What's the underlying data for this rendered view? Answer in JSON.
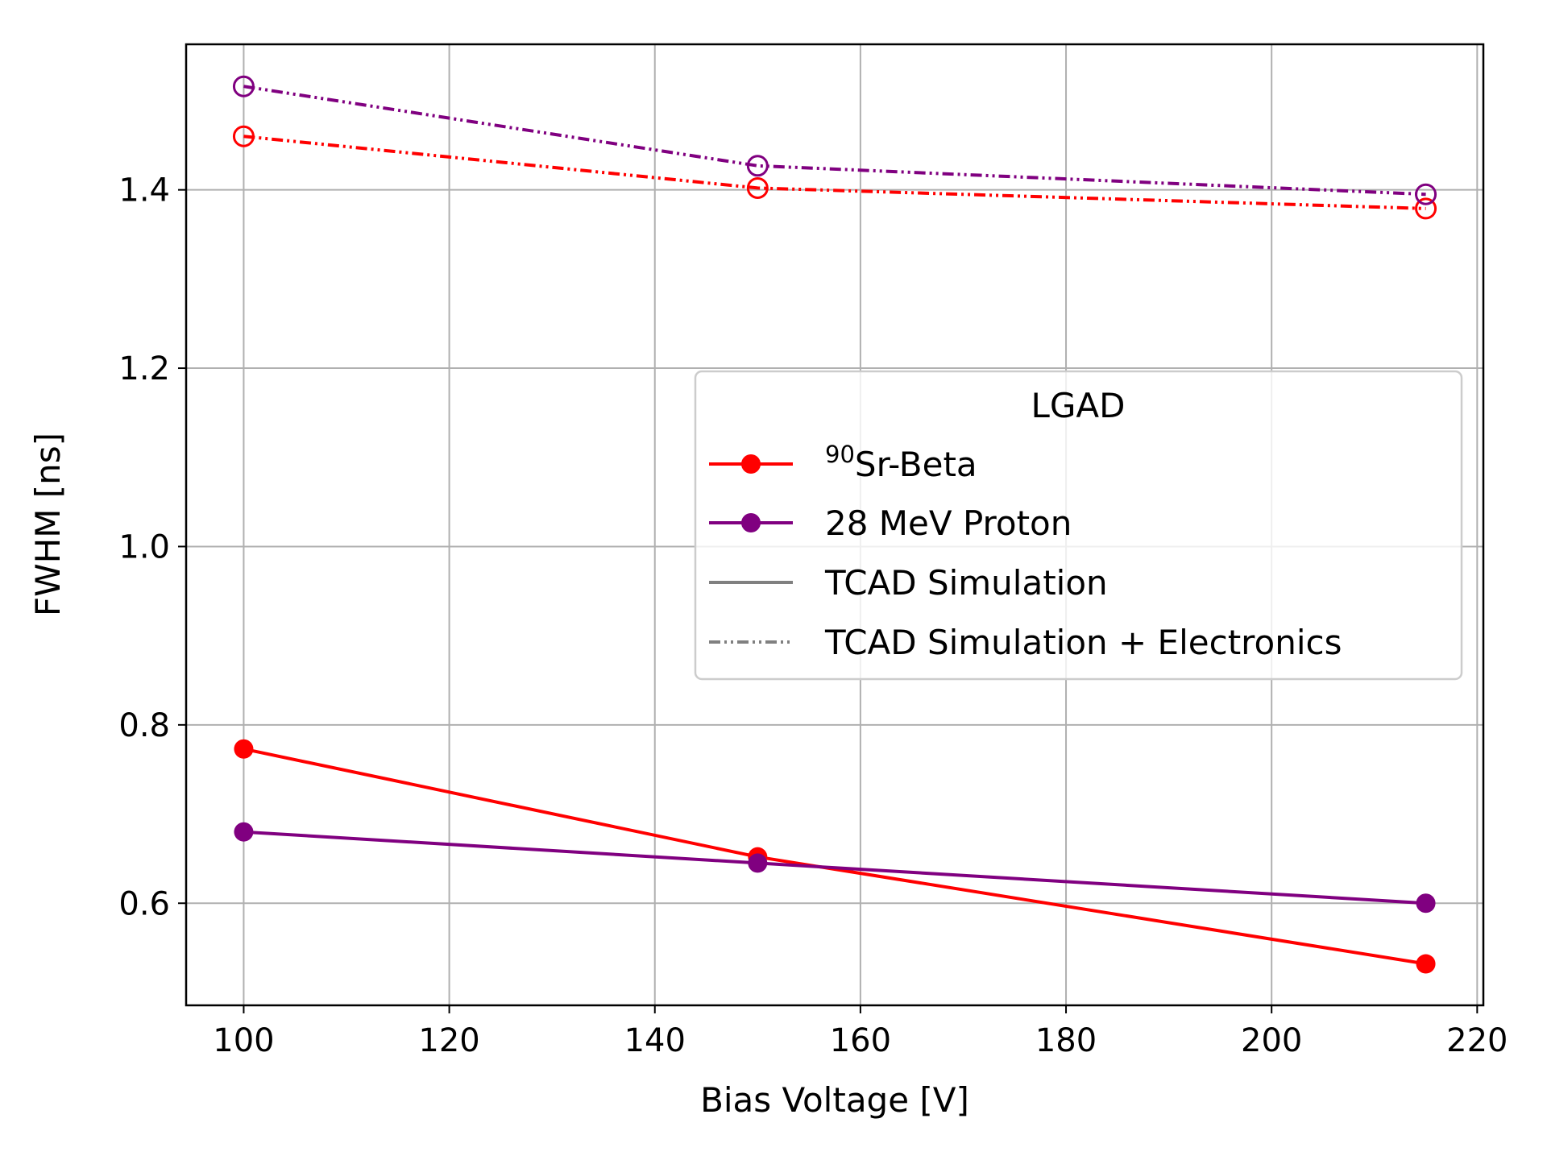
{
  "chart_data": {
    "type": "line",
    "title": "",
    "xlabel": "Bias Voltage [V]",
    "ylabel": "FWHM [ns]",
    "xlim": [
      94.4,
      220.6
    ],
    "ylim": [
      0.4855,
      1.5632
    ],
    "xticks": [
      100,
      120,
      140,
      160,
      180,
      200,
      220
    ],
    "yticks": [
      0.6,
      0.8,
      1.0,
      1.2,
      1.4
    ],
    "ytick_labels": [
      "0.6",
      "0.8",
      "1.0",
      "1.2",
      "1.4"
    ],
    "grid": true,
    "x": [
      100,
      150,
      215
    ],
    "series": [
      {
        "name": "90Sr-Beta TCAD Simulation",
        "color": "#ff0000",
        "style": "solid",
        "marker": "filled",
        "values": [
          0.773,
          0.652,
          0.532
        ]
      },
      {
        "name": "28 MeV Proton TCAD Simulation",
        "color": "#800080",
        "style": "solid",
        "marker": "filled",
        "values": [
          0.68,
          0.645,
          0.6
        ]
      },
      {
        "name": "90Sr-Beta TCAD Simulation + Electronics",
        "color": "#ff0000",
        "style": "dashdotdot",
        "marker": "open",
        "values": [
          1.46,
          1.402,
          1.379
        ]
      },
      {
        "name": "28 MeV Proton TCAD Simulation + Electronics",
        "color": "#800080",
        "style": "dashdotdot",
        "marker": "open",
        "values": [
          1.516,
          1.427,
          1.395
        ]
      }
    ],
    "legend": {
      "title": "LGAD",
      "position": "center-right",
      "entries": [
        {
          "sup": "90",
          "label": "Sr-Beta",
          "color": "#ff0000",
          "kind": "marker-line"
        },
        {
          "label": "28 MeV Proton",
          "color": "#800080",
          "kind": "marker-line"
        },
        {
          "label": "TCAD Simulation",
          "color": "#808080",
          "kind": "solid"
        },
        {
          "label": "TCAD Simulation + Electronics",
          "color": "#808080",
          "kind": "dashdotdot"
        }
      ]
    }
  }
}
